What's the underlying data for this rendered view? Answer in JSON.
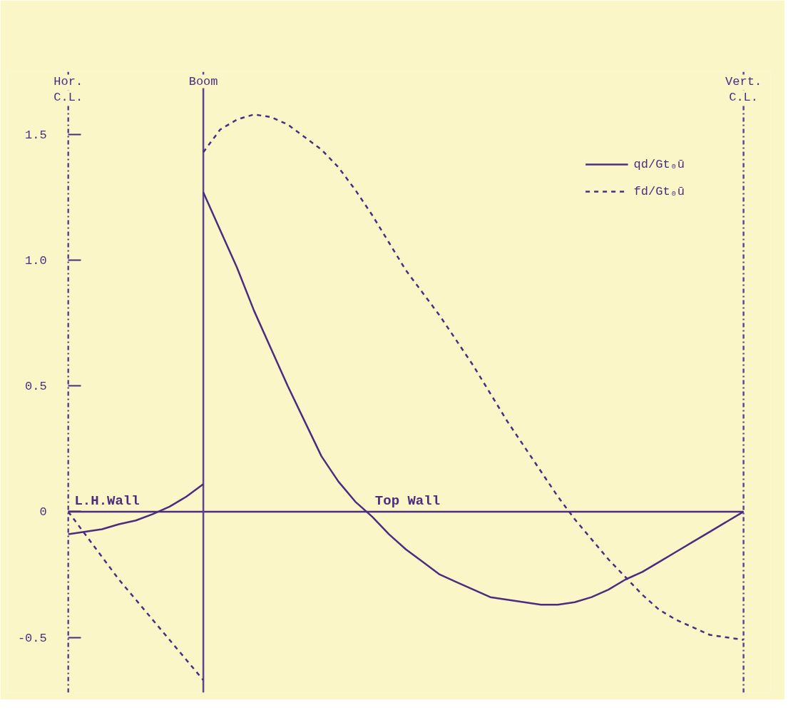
{
  "chart_data": {
    "type": "line",
    "categories": [
      null,
      null,
      null,
      null,
      null,
      null,
      null,
      null,
      null,
      null,
      null,
      null,
      null,
      null,
      null,
      null,
      null,
      null,
      null,
      null,
      null,
      null,
      null,
      null,
      null,
      null,
      null,
      null,
      null,
      null,
      null,
      null,
      null,
      null,
      null,
      null,
      null,
      null,
      null,
      null,
      null
    ],
    "ylim": [
      -0.72,
      1.75
    ],
    "yticks": [
      1.5,
      {
        "value": 1,
        "label": "1.0"
      },
      0.5,
      0,
      -0.5
    ],
    "tick_labels": "y",
    "grid": false,
    "legend": "top right",
    "series": [
      {
        "name": "qd/Gt₀ū",
        "color": "#4b2c7f",
        "line_style": "solid",
        "values": [
          null,
          null,
          null,
          null,
          null,
          null,
          null,
          null,
          1.27,
          1.12,
          0.97,
          0.8,
          0.65,
          0.5,
          0.36,
          0.22,
          0.12,
          0.04,
          -0.02,
          -0.09,
          -0.15,
          -0.2,
          -0.25,
          -0.28,
          -0.31,
          -0.34,
          -0.35,
          -0.36,
          -0.37,
          -0.37,
          -0.36,
          -0.34,
          -0.31,
          -0.27,
          -0.24,
          -0.2,
          -0.16,
          -0.12,
          -0.08,
          -0.04,
          0
        ]
      },
      {
        "name": "fd/Gt₀ū",
        "color": "#4b2c7f",
        "line_style": "dashed",
        "values": [
          null,
          null,
          null,
          null,
          null,
          null,
          null,
          null,
          1.43,
          1.52,
          1.56,
          1.58,
          1.57,
          1.54,
          1.49,
          1.44,
          1.37,
          1.28,
          1.18,
          1.07,
          0.96,
          0.87,
          0.78,
          0.68,
          0.58,
          0.47,
          0.36,
          0.26,
          0.16,
          0.06,
          -0.03,
          -0.11,
          -0.19,
          -0.26,
          -0.33,
          -0.39,
          -0.43,
          -0.46,
          -0.49,
          -0.5,
          -0.51
        ]
      },
      {
        "color": "#4b2c7f",
        "line_style": "solid",
        "values": [
          -0.09,
          -0.08,
          -0.07,
          -0.05,
          -0.035,
          -0.01,
          0.02,
          0.06,
          0.11,
          null,
          null,
          null,
          null,
          null,
          null,
          null,
          null,
          null,
          null,
          null,
          null,
          null,
          null,
          null,
          null,
          null,
          null,
          null,
          null,
          null,
          null,
          null,
          null,
          null,
          null,
          null,
          null,
          null,
          null,
          null,
          null
        ]
      },
      {
        "color": "#4b2c7f",
        "line_style": "dashed",
        "values": [
          0,
          -0.09,
          -0.18,
          -0.27,
          -0.35,
          -0.43,
          -0.51,
          -0.59,
          -0.67,
          null,
          null,
          null,
          null,
          null,
          null,
          null,
          null,
          null,
          null,
          null,
          null,
          null,
          null,
          null,
          null,
          null,
          null,
          null,
          null,
          null,
          null,
          null,
          null,
          null,
          null,
          null,
          null,
          null,
          null,
          null,
          null
        ]
      }
    ],
    "ref_lines": [
      {
        "axis": "y",
        "value": 0,
        "line_style": "solid",
        "color": "#4b2c7f"
      }
    ],
    "annotations": [
      "L.H.Wall",
      "Top Wall",
      "Hor.\nC.L.",
      "Boom",
      "Vert.\nC.L."
    ]
  }
}
